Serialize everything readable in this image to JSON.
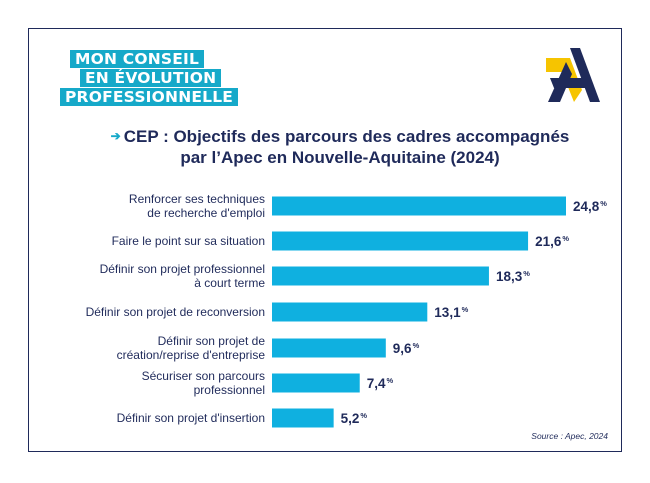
{
  "logo": {
    "line1": "MON CONSEIL",
    "line2": "EN ÉVOLUTION",
    "line3": "PROFESSIONNELLE",
    "color": "#16a9c9"
  },
  "brand": {
    "icon": "apec-a-logo-icon",
    "navy": "#1f2a5a",
    "yellow": "#f6c400"
  },
  "title": {
    "arrow": "➔",
    "line1": "CEP : Objectifs des parcours des cadres accompagnés",
    "line2": "par l’Apec en Nouvelle-Aquitaine (2024)"
  },
  "source": "Source : Apec, 2024",
  "chart_data": {
    "type": "bar",
    "orientation": "horizontal",
    "categories": [
      [
        "Renforcer ses techniques",
        "de recherche d'emploi"
      ],
      [
        "Faire le point sur sa situation"
      ],
      [
        "Définir son projet professionnel",
        "à court terme"
      ],
      [
        "Définir son projet de reconversion"
      ],
      [
        "Définir son projet de",
        "création/reprise d'entreprise"
      ],
      [
        "Sécuriser son parcours",
        "professionnel"
      ],
      [
        "Définir son projet d'insertion"
      ]
    ],
    "values": [
      24.8,
      21.6,
      18.3,
      13.1,
      9.6,
      7.4,
      5.2
    ],
    "value_labels": [
      "24,8",
      "21,6",
      "18,3",
      "13,1",
      "9,6",
      "7,4",
      "5,2"
    ],
    "unit": "%",
    "bar_color": "#0fb0e0",
    "xlim": [
      0,
      24.8
    ],
    "grid": false,
    "legend": "none"
  }
}
